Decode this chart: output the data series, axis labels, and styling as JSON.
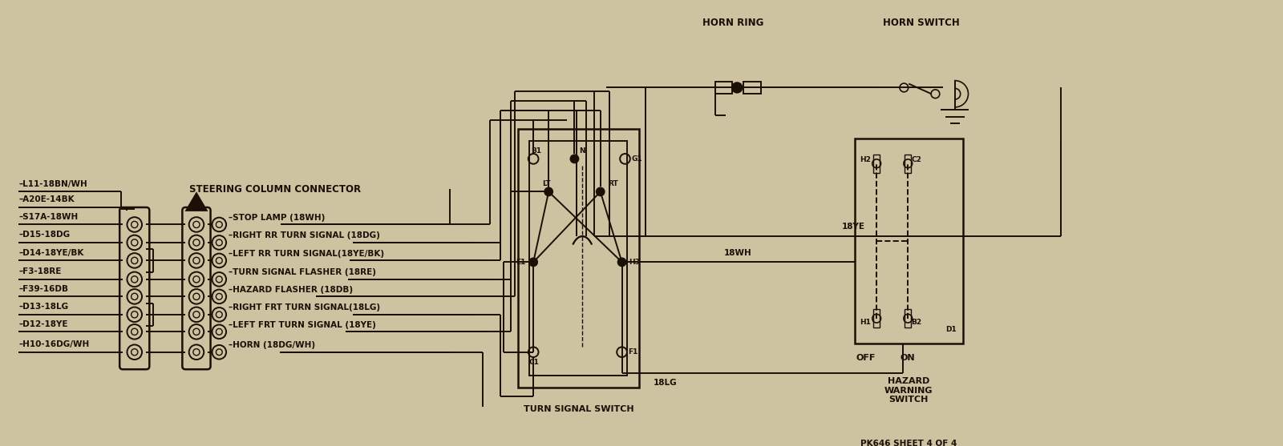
{
  "bg_color": "#cdc3a0",
  "line_color": "#1a1005",
  "fig_width": 16.0,
  "fig_height": 5.57,
  "left_wire_labels": [
    "L11-18BN/WH",
    "A20E-14BK",
    "S17A-18WH",
    "D15-18DG",
    "D14-18YE/BK",
    "F3-18RE",
    "F39-16DB",
    "D13-18LG",
    "D12-18YE",
    "H10-16DG/WH"
  ],
  "connector_labels": [
    "STOP LAMP (18WH)",
    "RIGHT RR TURN SIGNAL (18DG)",
    "LEFT RR TURN SIGNAL(18YE/BK)",
    "TURN SIGNAL FLASHER (18RE)",
    "HAZARD FLASHER (18DB)",
    "RIGHT FRT TURN SIGNAL(18LG)",
    "LEFT FRT TURN SIGNAL (18YE)",
    "HORN (18DG/WH)"
  ],
  "connector_has_circle": [
    true,
    true,
    true,
    true,
    true,
    true,
    true,
    true
  ],
  "steering_col_label": "STEERING COLUMN CONNECTOR",
  "horn_ring_label": "HORN RING",
  "horn_switch_label": "HORN SWITCH",
  "turn_signal_label": "TURN SIGNAL SWITCH",
  "hazard_label": "HAZARD\nWARNING\nSWITCH",
  "sheet_label": "PK646 SHEET 4 OF 4",
  "wire_18ye_label": "18YE",
  "wire_18wh_label": "18WH",
  "wire_18lg_label": "18LG"
}
